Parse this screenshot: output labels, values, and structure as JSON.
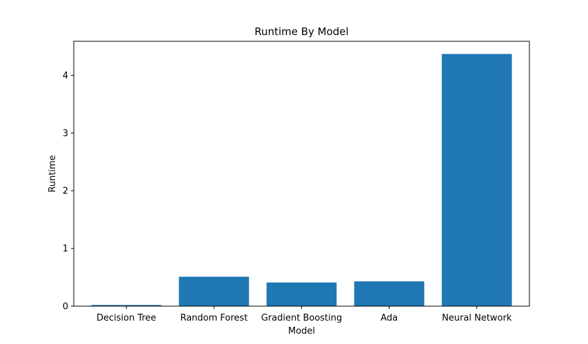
{
  "chart_data": {
    "type": "bar",
    "title": "Runtime By Model",
    "xlabel": "Model",
    "ylabel": "Runtime",
    "categories": [
      "Decision Tree",
      "Random Forest",
      "Gradient Boosting",
      "Ada",
      "Neural Network"
    ],
    "values": [
      0.02,
      0.51,
      0.41,
      0.43,
      4.37
    ],
    "ylim": [
      0,
      4.59
    ],
    "yticks": [
      0,
      1,
      2,
      3,
      4
    ],
    "grid": false,
    "bar_color": "#1f77b4"
  }
}
